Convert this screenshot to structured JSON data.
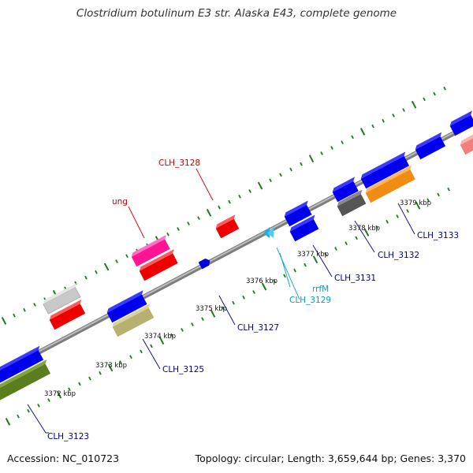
{
  "title": "Clostridium botulinum E3 str. Alaska E43, complete genome",
  "footer": {
    "accession": "Accession: NC_010723",
    "topology": "Topology: circular; Length: 3,659,644 bp; Genes: 3,370"
  },
  "colors": {
    "backbone": "#8c8c8c",
    "ticks": "#1f7a1f",
    "gene_label": "#00008b",
    "rna_label": "#00a0c8",
    "highlight_label": "#cc0000"
  },
  "ruler_labels": [
    "3372 kbp",
    "3373 kbp",
    "3374 kbp",
    "3375 kbp",
    "3376 kbp",
    "3377 kbp",
    "3378 kbp",
    "3379 kbp"
  ],
  "feature_labels": [
    {
      "id": "l_ung",
      "text": "ung",
      "color": "#cc0000"
    },
    {
      "id": "l_3128",
      "text": "CLH_3128",
      "color": "#cc0000"
    },
    {
      "id": "l_3123",
      "text": "CLH_3123",
      "color": "#00008b"
    },
    {
      "id": "l_3125",
      "text": "CLH_3125",
      "color": "#00008b"
    },
    {
      "id": "l_3127",
      "text": "CLH_3127",
      "color": "#00008b"
    },
    {
      "id": "l_rrfM",
      "text": "rrfM",
      "color": "#00a0c8"
    },
    {
      "id": "l_3129",
      "text": "CLH_3129",
      "color": "#00a0c8"
    },
    {
      "id": "l_3131",
      "text": "CLH_3131",
      "color": "#00008b"
    },
    {
      "id": "l_3132",
      "text": "CLH_3132",
      "color": "#00008b"
    },
    {
      "id": "l_3133",
      "text": "CLH_3133",
      "color": "#00008b"
    }
  ]
}
